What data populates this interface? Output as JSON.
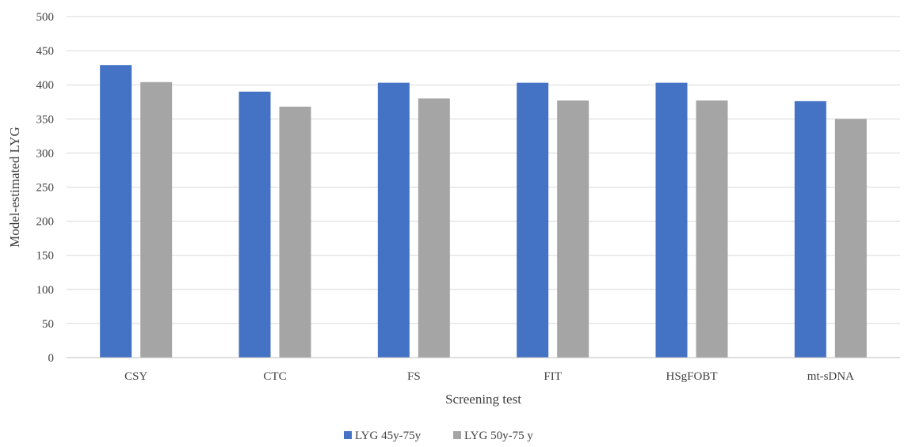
{
  "chart_data": {
    "type": "bar",
    "title": "",
    "xlabel": "Screening test",
    "ylabel": "Model-estimated LYG",
    "categories": [
      "CSY",
      "CTC",
      "FS",
      "FIT",
      "HSgFOBT",
      "mt-sDNA"
    ],
    "series": [
      {
        "name": "LYG 45y-75y",
        "color": "#4472c4",
        "values": [
          429,
          390,
          403,
          403,
          403,
          376
        ]
      },
      {
        "name": "LYG 50y-75 y",
        "color": "#a5a5a5",
        "values": [
          404,
          368,
          380,
          377,
          377,
          350
        ]
      }
    ],
    "ylim": [
      0,
      500
    ],
    "yticks": [
      0,
      50,
      100,
      150,
      200,
      250,
      300,
      350,
      400,
      450,
      500
    ],
    "grid": true,
    "legend": "bottom"
  }
}
